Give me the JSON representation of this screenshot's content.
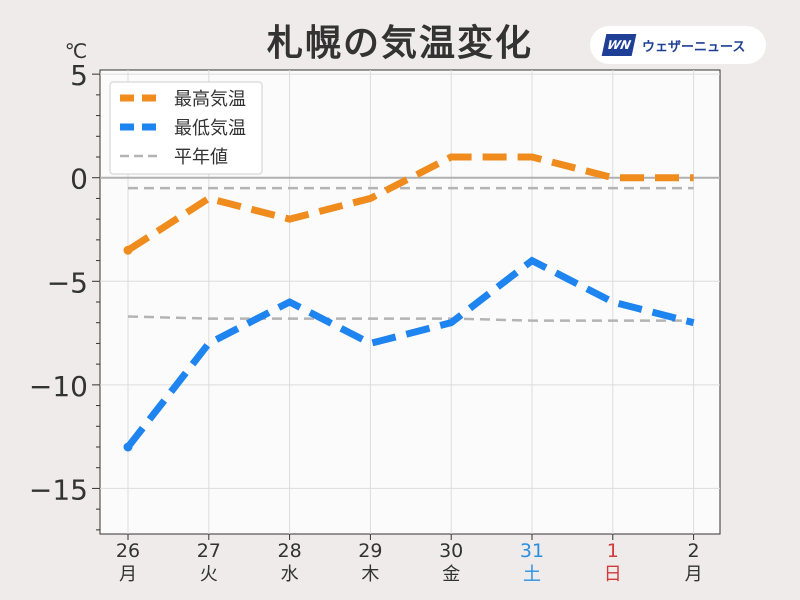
{
  "title": "札幌の気温変化",
  "brand": {
    "logo_text": "WN",
    "name": "ウェザーニュース"
  },
  "colors": {
    "high": "#f08c1e",
    "low": "#1e84ef",
    "normal": "#b4b4b4",
    "saturday": "#2b8fe0",
    "sunday": "#d33a3a"
  },
  "chart_data": {
    "type": "line",
    "unit_label": "℃",
    "ylim": [
      -17.2,
      5.2
    ],
    "yticks": [
      5,
      0,
      -5,
      -10,
      -15
    ],
    "ytick_labels": [
      "5",
      "0",
      "−5",
      "−10",
      "−15"
    ],
    "categories": [
      "26",
      "27",
      "28",
      "29",
      "30",
      "31",
      "1",
      "2"
    ],
    "weekdays": [
      "月",
      "火",
      "水",
      "木",
      "金",
      "土",
      "日",
      "月"
    ],
    "grid": true,
    "legend_position": "top-left",
    "series": [
      {
        "name": "最高気温",
        "key": "high",
        "values": [
          -3.5,
          -1,
          -2,
          -1,
          1,
          1,
          0,
          0
        ]
      },
      {
        "name": "最低気温",
        "key": "low",
        "values": [
          -13,
          -8,
          -6,
          -8,
          -7,
          -4,
          -6,
          -7
        ]
      },
      {
        "name": "平年値",
        "key": "normal_high",
        "values": [
          -0.5,
          -0.5,
          -0.5,
          -0.5,
          -0.5,
          -0.5,
          -0.5,
          -0.5
        ]
      },
      {
        "key": "normal_low",
        "values": [
          -6.7,
          -6.8,
          -6.8,
          -6.8,
          -6.8,
          -6.9,
          -6.9,
          -6.9
        ]
      }
    ]
  }
}
